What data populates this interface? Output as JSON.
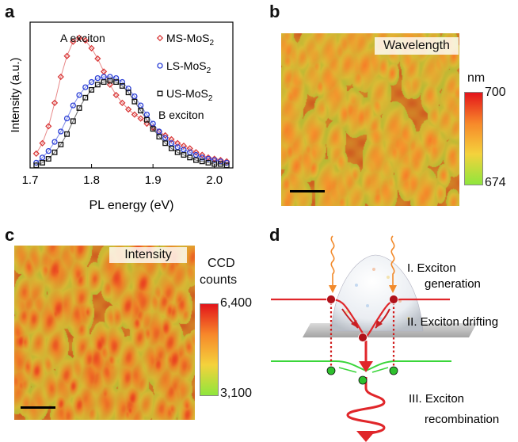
{
  "panels": {
    "a": "a",
    "b": "b",
    "c": "c",
    "d": "d"
  },
  "chart_data": {
    "type": "scatter",
    "xlabel": "PL energy (eV)",
    "ylabel": "Intensity (a.u.)",
    "xlim": [
      1.7,
      2.03
    ],
    "ylim": [
      0,
      1.12
    ],
    "xticks": [
      "1.7",
      "1.8",
      "1.9",
      "2.0"
    ],
    "annotations": [
      "A exciton",
      "B exciton"
    ],
    "legend_position": "right",
    "series": [
      {
        "name": "MS-MoS2",
        "base": "MS-MoS",
        "sub": "2",
        "color": "#d93a3a",
        "marker": "diamond",
        "x": [
          1.71,
          1.72,
          1.73,
          1.74,
          1.75,
          1.76,
          1.77,
          1.78,
          1.79,
          1.8,
          1.81,
          1.82,
          1.83,
          1.84,
          1.85,
          1.86,
          1.87,
          1.88,
          1.89,
          1.9,
          1.91,
          1.92,
          1.93,
          1.94,
          1.95,
          1.96,
          1.97,
          1.98,
          1.99,
          2.0,
          2.01,
          2.02
        ],
        "y": [
          0.11,
          0.19,
          0.32,
          0.5,
          0.7,
          0.86,
          0.97,
          1.0,
          0.98,
          0.92,
          0.84,
          0.74,
          0.64,
          0.56,
          0.5,
          0.45,
          0.41,
          0.38,
          0.34,
          0.31,
          0.28,
          0.25,
          0.22,
          0.19,
          0.17,
          0.15,
          0.12,
          0.1,
          0.08,
          0.07,
          0.06,
          0.05
        ]
      },
      {
        "name": "LS-MoS2",
        "base": "LS-MoS",
        "sub": "2",
        "color": "#2b3fd6",
        "marker": "circle",
        "x": [
          1.71,
          1.72,
          1.73,
          1.74,
          1.75,
          1.76,
          1.77,
          1.78,
          1.79,
          1.8,
          1.81,
          1.82,
          1.83,
          1.84,
          1.85,
          1.86,
          1.87,
          1.88,
          1.89,
          1.9,
          1.91,
          1.92,
          1.93,
          1.94,
          1.95,
          1.96,
          1.97,
          1.98,
          1.99,
          2.0,
          2.01,
          2.02
        ],
        "y": [
          0.04,
          0.08,
          0.13,
          0.2,
          0.28,
          0.38,
          0.48,
          0.56,
          0.62,
          0.66,
          0.69,
          0.7,
          0.7,
          0.69,
          0.66,
          0.61,
          0.55,
          0.48,
          0.41,
          0.34,
          0.28,
          0.23,
          0.19,
          0.16,
          0.14,
          0.12,
          0.1,
          0.08,
          0.07,
          0.06,
          0.05,
          0.04
        ]
      },
      {
        "name": "US-MoS2",
        "base": "US-MoS",
        "sub": "2",
        "color": "#111111",
        "marker": "square",
        "x": [
          1.71,
          1.72,
          1.73,
          1.74,
          1.75,
          1.76,
          1.77,
          1.78,
          1.79,
          1.8,
          1.81,
          1.82,
          1.83,
          1.84,
          1.85,
          1.86,
          1.87,
          1.88,
          1.89,
          1.9,
          1.91,
          1.92,
          1.93,
          1.94,
          1.95,
          1.96,
          1.97,
          1.98,
          1.99,
          2.0,
          2.01,
          2.02
        ],
        "y": [
          0.02,
          0.04,
          0.07,
          0.12,
          0.18,
          0.26,
          0.36,
          0.46,
          0.54,
          0.6,
          0.64,
          0.66,
          0.67,
          0.66,
          0.63,
          0.58,
          0.51,
          0.44,
          0.37,
          0.3,
          0.24,
          0.19,
          0.15,
          0.12,
          0.1,
          0.08,
          0.06,
          0.05,
          0.04,
          0.03,
          0.03,
          0.02
        ]
      }
    ]
  },
  "panel_b": {
    "title": "Wavelength",
    "cbar_unit": "nm",
    "cbar_max": "700",
    "cbar_min": "674",
    "colors": [
      "#e3141a",
      "#f7882a",
      "#f4d23c",
      "#8fe63d"
    ]
  },
  "panel_c": {
    "title": "Intensity",
    "cbar_unit_line1": "CCD",
    "cbar_unit_line2": "counts",
    "cbar_max": "6,400",
    "cbar_min": "3,100",
    "colors": [
      "#e3141a",
      "#f7882a",
      "#f4d23c",
      "#8fe63d"
    ]
  },
  "panel_d": {
    "step1_line1": "I. Exciton",
    "step1_line2": "generation",
    "step2": "II. Exciton drifting",
    "step3_line1": "III. Exciton",
    "step3_line2": "recombination",
    "colors": {
      "band": "#e0262a",
      "lower": "#3ad63a",
      "photon": "#f28a2b",
      "particle": "#b0121a"
    }
  }
}
